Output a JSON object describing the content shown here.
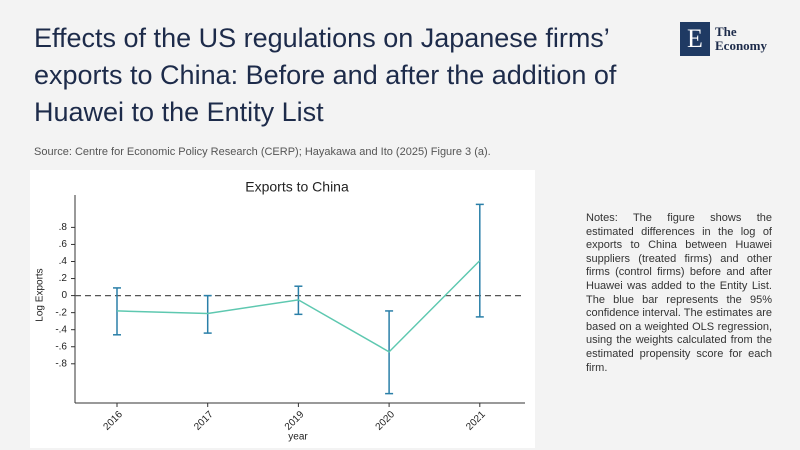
{
  "header": {
    "title": "Effects of the US regulations on Japanese firms’ exports to China: Before and after the addition of Huawei to the Entity List",
    "source": "Source: Centre for Economic Policy Research (CERP); Hayakawa and Ito (2025) Figure 3 (a)."
  },
  "logo": {
    "letter": "E",
    "line1": "The",
    "line2": "Economy"
  },
  "notes": "Notes: The figure shows the estimated differences in the log of exports to China between Huawei suppliers (treated firms) and other firms (control firms) before and after Huawei was added to the Entity List. The blue bar represents the 95% confidence interval. The estimates are based on a weighted OLS regression, using the weights calculated from the estimated propensity score for each firm.",
  "chart_data": {
    "type": "line",
    "title": "Exports to China",
    "x_label": "year",
    "y_label": "Log Exports",
    "categories": [
      "2016",
      "2017",
      "2019",
      "2020",
      "2021"
    ],
    "series": [
      {
        "values": [
          -0.18,
          -0.21,
          -0.05,
          -0.66,
          0.41
        ],
        "lower": [
          -0.46,
          -0.44,
          -0.22,
          -1.15,
          -0.25
        ],
        "upper": [
          0.09,
          0.0,
          0.11,
          -0.18,
          1.07
        ],
        "color": "#5ec8b0",
        "error_color": "#2a7fa8"
      }
    ],
    "ylim": [
      -1.26,
      1.18
    ],
    "yticks": [
      {
        "value": 0.8,
        "label": ".8"
      },
      {
        "value": 0.6,
        "label": ".6"
      },
      {
        "value": 0.4,
        "label": ".4"
      },
      {
        "value": 0.2,
        "label": ".2"
      },
      0,
      {
        "value": -0.2,
        "label": "-.2"
      },
      {
        "value": -0.4,
        "label": "-.4"
      },
      {
        "value": -0.6,
        "label": "-.6"
      },
      {
        "value": -0.8,
        "label": "-.8"
      }
    ],
    "reference_line": 0
  }
}
